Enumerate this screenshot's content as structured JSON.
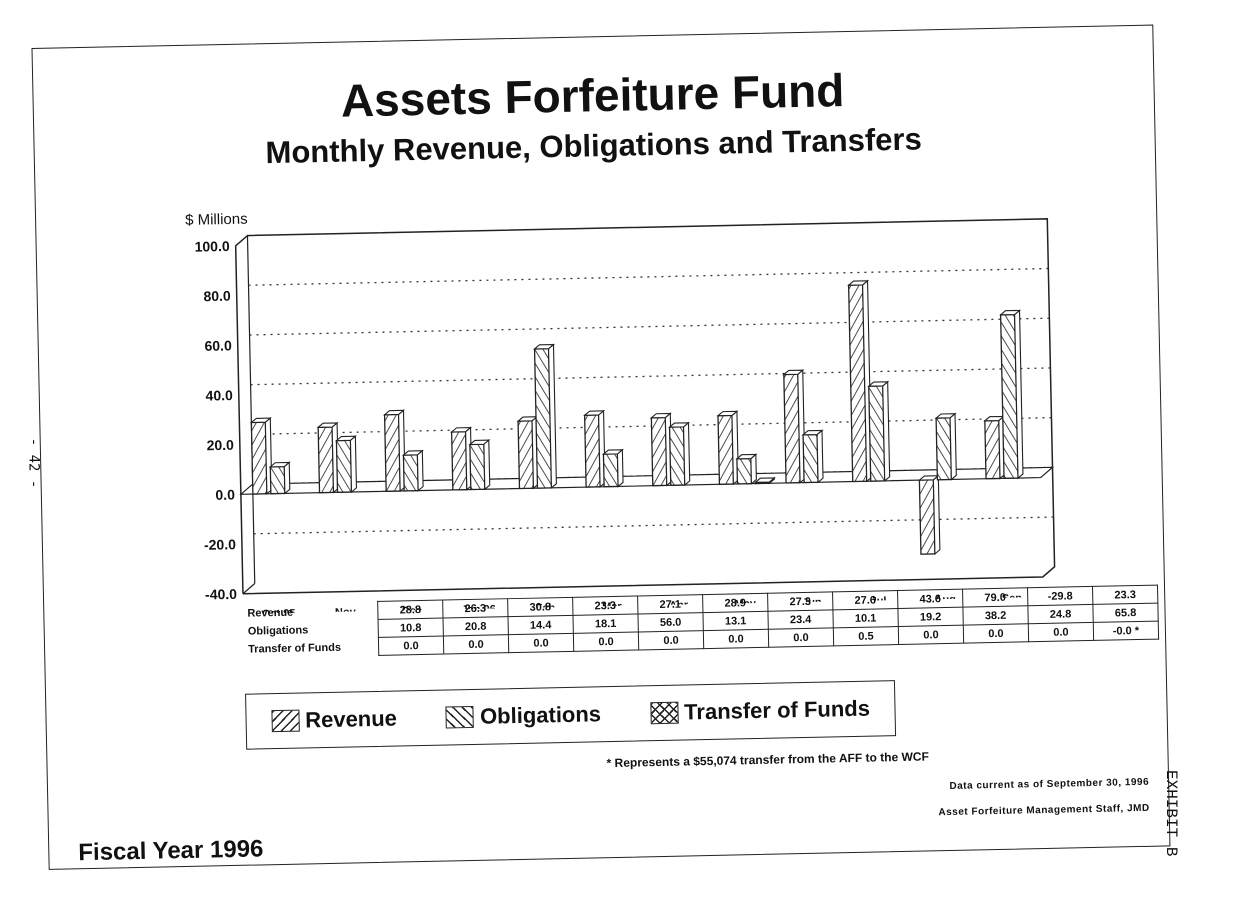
{
  "document": {
    "title": "Assets Forfeiture Fund",
    "subtitle": "Monthly Revenue, Obligations and Transfers",
    "fiscal_year": "Fiscal Year 1996",
    "footnote": "* Represents a $55,074 transfer from the AFF to the WCF",
    "data_current": "Data current as of September 30, 1996",
    "staff": "Asset Forfeiture Management Staff, JMD",
    "page_number": "- 42 -",
    "exhibit": "EXHIBIT B"
  },
  "chart_data": {
    "type": "bar",
    "ylabel": "$ Millions",
    "ylim": [
      -40,
      100
    ],
    "yticks": [
      "100.0",
      "80.0",
      "60.0",
      "40.0",
      "20.0",
      "0.0",
      "-20.0",
      "-40.0"
    ],
    "grid": true,
    "categories": [
      "Oct 95",
      "Nov",
      "Dec",
      "Jan 96",
      "Feb",
      "Mar",
      "Apr",
      "May",
      "Jun",
      "Jul",
      "Aug",
      "Sep"
    ],
    "series": [
      {
        "name": "Revenue",
        "values": [
          28.8,
          26.3,
          30.8,
          23.3,
          27.1,
          28.9,
          27.3,
          27.6,
          43.6,
          79.0,
          -29.8,
          23.3
        ],
        "labels": [
          "28.8",
          "26.3",
          "30.8",
          "23.3",
          "27.1",
          "28.9",
          "27.3",
          "27.6",
          "43.6",
          "79.0",
          "-29.8",
          "23.3"
        ]
      },
      {
        "name": "Obligations",
        "values": [
          10.8,
          20.8,
          14.4,
          18.1,
          56.0,
          13.1,
          23.4,
          10.1,
          19.2,
          38.2,
          24.8,
          65.8
        ],
        "labels": [
          "10.8",
          "20.8",
          "14.4",
          "18.1",
          "56.0",
          "13.1",
          "23.4",
          "10.1",
          "19.2",
          "38.2",
          "24.8",
          "65.8"
        ]
      },
      {
        "name": "Transfer of Funds",
        "values": [
          0.0,
          0.0,
          0.0,
          0.0,
          0.0,
          0.0,
          0.0,
          0.5,
          0.0,
          0.0,
          0.0,
          -0.0
        ],
        "labels": [
          "0.0",
          "0.0",
          "0.0",
          "0.0",
          "0.0",
          "0.0",
          "0.0",
          "0.5",
          "0.0",
          "0.0",
          "0.0",
          "-0.0 *"
        ]
      }
    ],
    "table_row_labels": [
      "Revenue",
      "Obligations",
      "Transfer of Funds"
    ],
    "legend": [
      "Revenue",
      "Obligations",
      "Transfer of Funds"
    ],
    "legend_position": "bottom"
  }
}
